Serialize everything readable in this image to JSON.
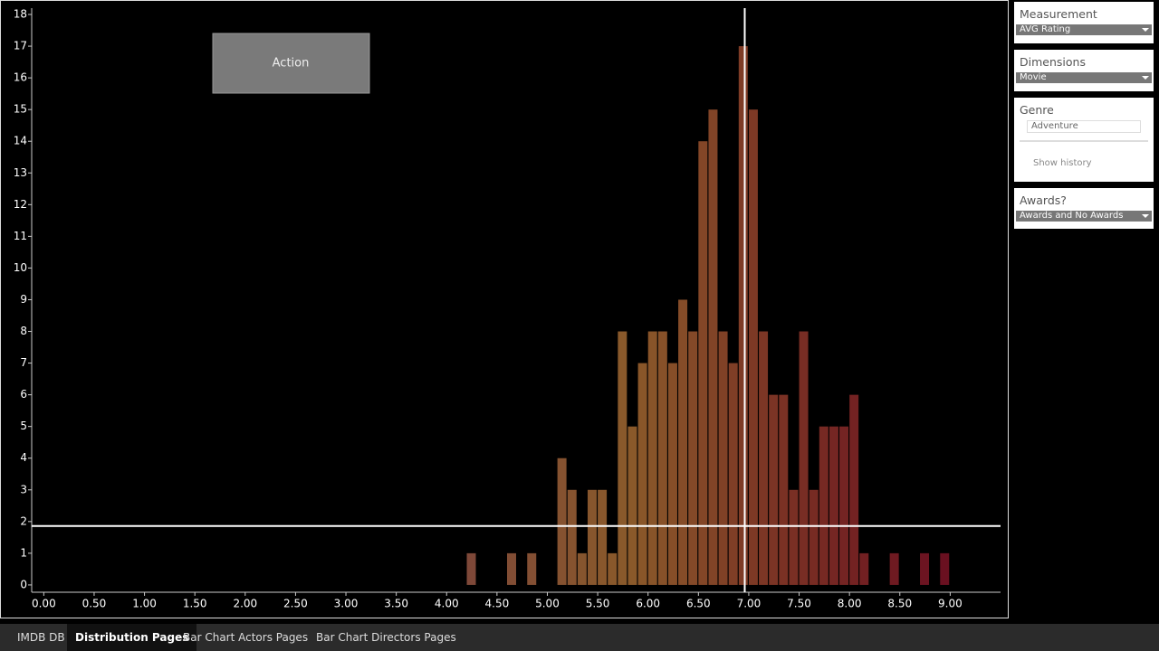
{
  "chart_data": {
    "type": "histogram",
    "annotation": "Action",
    "x": [
      4.2,
      4.6,
      4.8,
      5.1,
      5.2,
      5.3,
      5.4,
      5.5,
      5.6,
      5.7,
      5.8,
      5.9,
      6.0,
      6.1,
      6.2,
      6.3,
      6.4,
      6.5,
      6.6,
      6.7,
      6.8,
      6.9,
      7.0,
      7.1,
      7.2,
      7.3,
      7.4,
      7.5,
      7.6,
      7.7,
      7.8,
      7.9,
      8.0,
      8.1,
      8.4,
      8.7,
      8.9
    ],
    "values": [
      1,
      1,
      1,
      4,
      3,
      1,
      3,
      3,
      1,
      8,
      5,
      7,
      8,
      8,
      7,
      9,
      8,
      14,
      15,
      8,
      7,
      17,
      15,
      8,
      6,
      6,
      3,
      8,
      3,
      5,
      5,
      5,
      6,
      1,
      1,
      1,
      1
    ],
    "xlim": [
      -0.12,
      9.5
    ],
    "ylim": [
      -0.23,
      18.2
    ],
    "xticks": [
      {
        "value": 0,
        "label": "0.00"
      },
      {
        "value": 0.5,
        "label": "0.50"
      },
      {
        "value": 1,
        "label": "1.00"
      },
      {
        "value": 1.5,
        "label": "1.50"
      },
      {
        "value": 2,
        "label": "2.00"
      },
      {
        "value": 2.5,
        "label": "2.50"
      },
      {
        "value": 3,
        "label": "3.00"
      },
      {
        "value": 3.5,
        "label": "3.50"
      },
      {
        "value": 4,
        "label": "4.00"
      },
      {
        "value": 4.5,
        "label": "4.50"
      },
      {
        "value": 5,
        "label": "5.00"
      },
      {
        "value": 5.5,
        "label": "5.50"
      },
      {
        "value": 6,
        "label": "6.00"
      },
      {
        "value": 6.5,
        "label": "6.50"
      },
      {
        "value": 7,
        "label": "7.00"
      },
      {
        "value": 7.5,
        "label": "7.50"
      },
      {
        "value": 8,
        "label": "8.00"
      },
      {
        "value": 8.5,
        "label": "8.50"
      },
      {
        "value": 9,
        "label": "9.00"
      }
    ],
    "yticks": [
      0,
      1,
      2,
      3,
      4,
      5,
      6,
      7,
      8,
      9,
      10,
      11,
      12,
      13,
      14,
      15,
      16,
      17,
      18
    ],
    "reference_lines": {
      "x": 6.96,
      "y": 1.86
    },
    "color_scale": [
      "#7e4838",
      "#8a5a2a",
      "#7a3024",
      "#6a1020"
    ],
    "grid": false
  },
  "filters": [
    {
      "title": "Measurement",
      "value": "AVG Rating"
    },
    {
      "title": "Dimensions",
      "value": "Movie"
    },
    {
      "title": "Genre",
      "value": "Adventure",
      "option": "Show history"
    },
    {
      "title": "Awards?",
      "value": "Awards and No Awards"
    }
  ],
  "tabs": [
    "IMDB DB",
    "Distribution Pages",
    "Bar Chart Actors Pages",
    "Bar Chart Directors Pages"
  ],
  "active_tab": 1
}
